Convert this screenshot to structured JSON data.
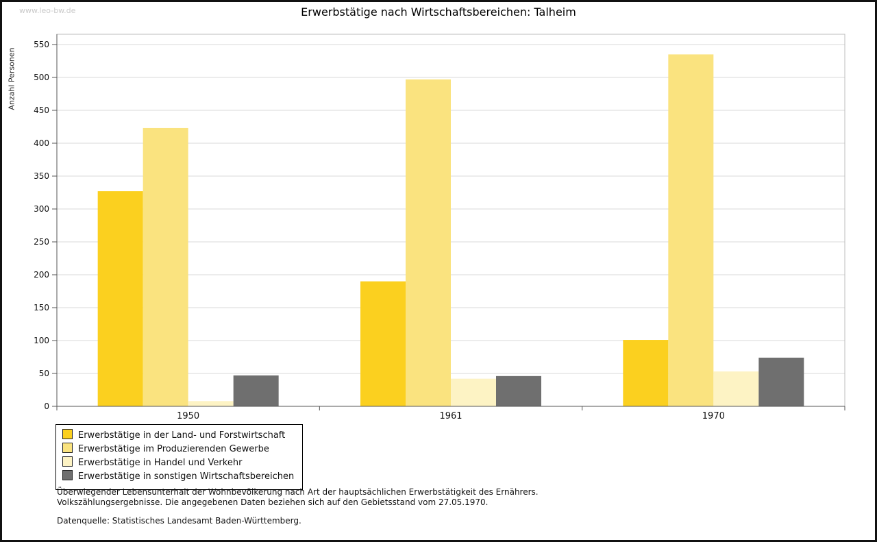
{
  "window": {
    "watermark": "www.leo-bw.de",
    "title": "Erwerbstätige nach Wirtschaftsbereichen: Talheim"
  },
  "chart_data": {
    "type": "bar",
    "title": "Erwerbstätige nach Wirtschaftsbereichen: Talheim",
    "xlabel": "",
    "ylabel": "Anzahl Personen",
    "categories": [
      "1950",
      "1961",
      "1970"
    ],
    "series": [
      {
        "name": "Erwerbstätige in der Land- und Forstwirtschaft",
        "color": "#fbd01f",
        "values": [
          327,
          190,
          101
        ]
      },
      {
        "name": "Erwerbstätige im Produzierenden Gewerbe",
        "color": "#fae37f",
        "values": [
          423,
          497,
          535
        ]
      },
      {
        "name": "Erwerbstätige in Handel und Verkehr",
        "color": "#fdf3c4",
        "values": [
          8,
          42,
          53
        ]
      },
      {
        "name": "Erwerbstätige in sonstigen Wirtschaftsbereichen",
        "color": "#6f6f6f",
        "values": [
          47,
          46,
          74
        ]
      }
    ],
    "ylim": [
      0,
      550
    ],
    "ytick_interval": 50,
    "grid": true,
    "legend_position": "bottom-left",
    "grid_color": "#d9d9d9",
    "axis_color": "#555555"
  },
  "notes": {
    "line1": "Überwiegender Lebensunterhalt der Wohnbevölkerung nach Art der hauptsächlichen Erwerbstätigkeit des Ernährers.",
    "line2": "Volkszählungsergebnisse. Die angegebenen Daten beziehen sich auf den Gebietsstand vom 27.05.1970.",
    "source": "Datenquelle: Statistisches Landesamt Baden-Württemberg."
  }
}
